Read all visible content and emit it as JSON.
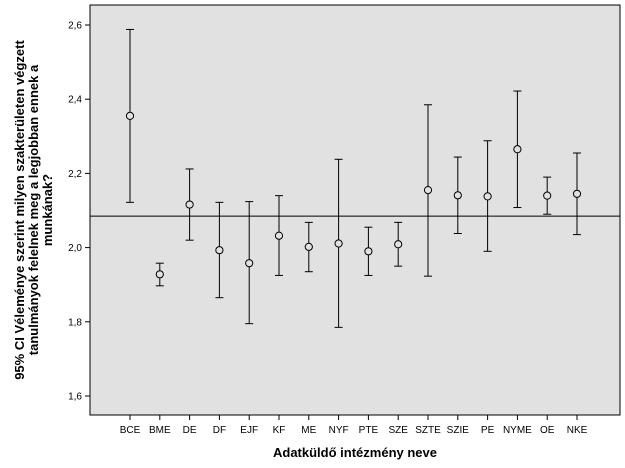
{
  "chart_data": {
    "type": "errorbar",
    "xlabel": "Adatküldő intézmény neve",
    "ylabel_lines": [
      "95% CI Véleménye szerint milyen szakterületen végzett",
      "tanulmányok felelnek meg a legjobban ennek a",
      "munkának?"
    ],
    "ylim": [
      1.55,
      2.65
    ],
    "yticks": [
      1.6,
      1.8,
      2.0,
      2.2,
      2.4,
      2.6
    ],
    "ytick_labels": [
      "1,6",
      "1,8",
      "2,0",
      "2,2",
      "2,4",
      "2,6"
    ],
    "reference_line": 2.085,
    "categories": [
      "BCE",
      "BME",
      "DE",
      "DF",
      "EJF",
      "KF",
      "ME",
      "NYF",
      "PTE",
      "SZE",
      "SZTE",
      "SZIE",
      "PE",
      "NYME",
      "OE",
      "NKE"
    ],
    "mean": [
      2.355,
      1.928,
      2.116,
      1.993,
      1.958,
      2.032,
      2.002,
      2.011,
      1.99,
      2.009,
      2.155,
      2.141,
      2.138,
      2.265,
      2.14,
      2.145
    ],
    "lower": [
      2.122,
      1.897,
      2.02,
      1.865,
      1.795,
      1.925,
      1.935,
      1.785,
      1.925,
      1.95,
      1.923,
      2.038,
      1.99,
      2.108,
      2.09,
      2.035
    ],
    "upper": [
      2.588,
      1.958,
      2.212,
      2.122,
      2.124,
      2.14,
      2.068,
      2.238,
      2.055,
      2.068,
      2.385,
      2.244,
      2.288,
      2.422,
      2.19,
      2.255
    ],
    "colors": {
      "plot_bg": "#e1e1e1",
      "line": "#000000",
      "marker_fill": "#e1e1e1"
    }
  }
}
